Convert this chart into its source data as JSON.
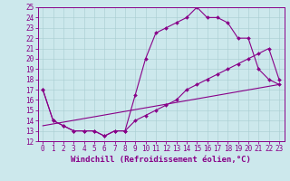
{
  "xlabel": "Windchill (Refroidissement éolien,°C)",
  "xlim": [
    -0.5,
    23.5
  ],
  "ylim": [
    12,
    25
  ],
  "xticks": [
    0,
    1,
    2,
    3,
    4,
    5,
    6,
    7,
    8,
    9,
    10,
    11,
    12,
    13,
    14,
    15,
    16,
    17,
    18,
    19,
    20,
    21,
    22,
    23
  ],
  "yticks": [
    12,
    13,
    14,
    15,
    16,
    17,
    18,
    19,
    20,
    21,
    22,
    23,
    24,
    25
  ],
  "background_color": "#cce8ec",
  "line_color": "#880088",
  "line1_y": [
    17,
    14,
    13.5,
    13,
    13,
    13,
    12.5,
    13,
    13,
    16.5,
    20,
    22.5,
    23,
    23.5,
    24.0,
    25,
    24,
    24,
    23.5,
    22,
    22,
    19,
    18,
    17.5
  ],
  "line2_y": [
    17,
    14,
    13.5,
    13,
    13,
    13,
    12.5,
    13,
    13,
    14,
    14.5,
    15,
    15.5,
    16,
    17,
    17.5,
    18,
    18.5,
    19,
    19.5,
    20,
    20.5,
    21,
    18
  ],
  "line3_x": [
    0,
    23
  ],
  "line3_y": [
    13.5,
    17.5
  ],
  "font_size": 6,
  "tick_font_size": 5.5,
  "xlabel_font_size": 6.5
}
